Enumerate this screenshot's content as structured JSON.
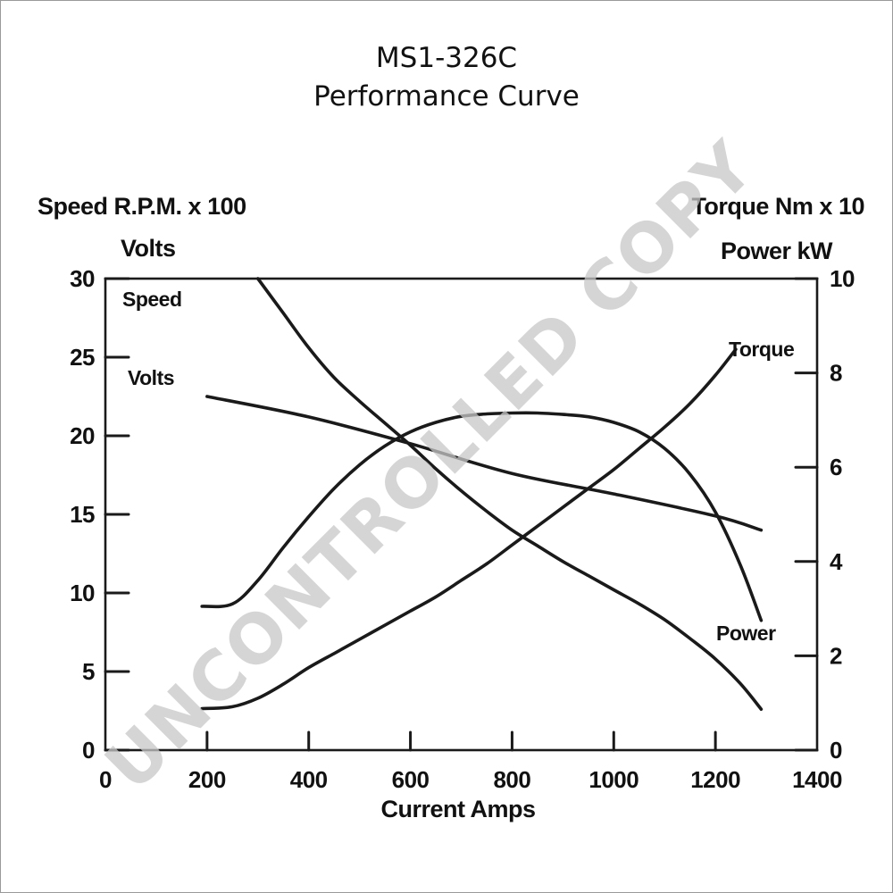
{
  "title": {
    "line1": "MS1-326C",
    "line2": "Performance Curve"
  },
  "watermark": "UNCONTROLLED COPY",
  "chart_data": {
    "type": "line",
    "xlabel": "Current Amps",
    "left_axis": {
      "label_line1": "Speed R.P.M. x 100",
      "label_line2": "Volts",
      "ylim": [
        0,
        30
      ],
      "ticks": [
        0,
        5,
        10,
        15,
        20,
        25,
        30
      ]
    },
    "right_axis": {
      "label_line1": "Torque Nm x 10",
      "label_line2": "Power kW",
      "ylim": [
        0,
        10
      ],
      "ticks": [
        0,
        2,
        4,
        6,
        8,
        10
      ]
    },
    "xlim": [
      0,
      1400
    ],
    "xticks": [
      0,
      200,
      400,
      600,
      800,
      1000,
      1200,
      1400
    ],
    "grid": false,
    "series": [
      {
        "name": "Speed",
        "axis": "left",
        "x": [
          300,
          350,
          400,
          450,
          500,
          550,
          600,
          650,
          700,
          750,
          800,
          850,
          900,
          950,
          1000,
          1050,
          1100,
          1150,
          1200,
          1250,
          1290
        ],
        "y": [
          30,
          27.8,
          25.6,
          23.7,
          22.2,
          20.8,
          19.4,
          17.9,
          16.5,
          15.2,
          14.0,
          13.0,
          12.0,
          11.1,
          10.2,
          9.3,
          8.3,
          7.1,
          5.8,
          4.2,
          2.6
        ]
      },
      {
        "name": "Volts",
        "axis": "left",
        "x": [
          200,
          400,
          600,
          800,
          1000,
          1200,
          1290
        ],
        "y": [
          22.5,
          21.2,
          19.5,
          17.6,
          16.3,
          14.9,
          14.0
        ]
      },
      {
        "name": "Torque",
        "axis": "right",
        "x": [
          190,
          250,
          300,
          350,
          400,
          450,
          500,
          550,
          600,
          650,
          700,
          750,
          800,
          850,
          900,
          950,
          1000,
          1050,
          1100,
          1150,
          1200,
          1240
        ],
        "y": [
          0.88,
          0.92,
          1.1,
          1.4,
          1.75,
          2.05,
          2.35,
          2.65,
          2.95,
          3.25,
          3.6,
          3.95,
          4.35,
          4.75,
          5.15,
          5.55,
          5.95,
          6.4,
          6.85,
          7.35,
          7.95,
          8.5
        ]
      },
      {
        "name": "Power",
        "axis": "right",
        "x": [
          190,
          250,
          300,
          350,
          400,
          450,
          500,
          550,
          600,
          650,
          700,
          750,
          800,
          850,
          900,
          950,
          1000,
          1050,
          1100,
          1150,
          1200,
          1250,
          1290
        ],
        "y": [
          3.05,
          3.1,
          3.6,
          4.3,
          4.95,
          5.55,
          6.05,
          6.45,
          6.75,
          6.95,
          7.08,
          7.13,
          7.15,
          7.15,
          7.12,
          7.07,
          6.95,
          6.75,
          6.4,
          5.85,
          5.05,
          3.9,
          2.75
        ]
      }
    ]
  }
}
